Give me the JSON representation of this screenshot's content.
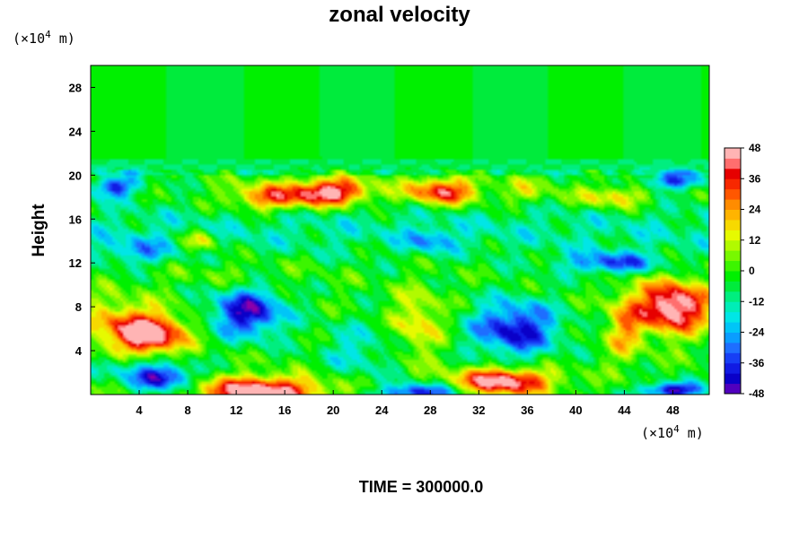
{
  "chart_data": {
    "type": "heatmap",
    "title": "zonal velocity",
    "ylabel": "Height",
    "y_unit_label": "(×10",
    "y_unit_exp": "4",
    "y_unit_tail": " m)",
    "x_unit_label": "(×10",
    "x_unit_exp": "4",
    "x_unit_tail": " m)",
    "time_label": "TIME = 300000.0",
    "xlim": [
      0,
      51
    ],
    "ylim": [
      0,
      30
    ],
    "x_ticks": [
      4,
      8,
      12,
      16,
      20,
      24,
      28,
      32,
      36,
      40,
      44,
      48
    ],
    "y_ticks": [
      4,
      8,
      12,
      16,
      20,
      24,
      28
    ],
    "colorbar": {
      "min": -48,
      "max": 48,
      "step": 4,
      "ticks": [
        48,
        36,
        24,
        12,
        0,
        -12,
        -24,
        -36,
        -48
      ]
    },
    "anomalies": [
      {
        "x": 5,
        "y": 5.5,
        "sx": 2.8,
        "sy": 1.8,
        "v": 52
      },
      {
        "x": 2,
        "y": 6.5,
        "sx": 3,
        "sy": 2.5,
        "v": 20
      },
      {
        "x": 14,
        "y": 0.3,
        "sx": 5,
        "sy": 1.3,
        "v": 55
      },
      {
        "x": 6,
        "y": 1.5,
        "sx": 2.5,
        "sy": 1.2,
        "v": -40
      },
      {
        "x": 13,
        "y": 7.5,
        "sx": 3,
        "sy": 2.2,
        "v": -42
      },
      {
        "x": 22,
        "y": 4,
        "sx": 3,
        "sy": 2.5,
        "v": -14
      },
      {
        "x": 27,
        "y": 6.5,
        "sx": 2,
        "sy": 3,
        "v": 20
      },
      {
        "x": 35,
        "y": 6,
        "sx": 3.5,
        "sy": 2.5,
        "v": -40
      },
      {
        "x": 34,
        "y": 1.2,
        "sx": 4,
        "sy": 1.2,
        "v": 52
      },
      {
        "x": 27,
        "y": 0.2,
        "sx": 3,
        "sy": 0.8,
        "v": -40
      },
      {
        "x": 48,
        "y": 8,
        "sx": 3,
        "sy": 2.3,
        "v": 56
      },
      {
        "x": 44,
        "y": 6,
        "sx": 1.5,
        "sy": 3,
        "v": 22
      },
      {
        "x": 48,
        "y": 0.4,
        "sx": 2.5,
        "sy": 0.7,
        "v": -45
      },
      {
        "x": 3,
        "y": 2.5,
        "sx": 3,
        "sy": 1.2,
        "v": -14
      },
      {
        "x": 20,
        "y": 18.5,
        "sx": 3,
        "sy": 1.2,
        "v": 48
      },
      {
        "x": 15,
        "y": 18,
        "sx": 3.5,
        "sy": 1.2,
        "v": 35
      },
      {
        "x": 29,
        "y": 18.5,
        "sx": 3,
        "sy": 1.2,
        "v": 42
      },
      {
        "x": 36,
        "y": 18.5,
        "sx": 2,
        "sy": 1.2,
        "v": 14
      },
      {
        "x": 43,
        "y": 18,
        "sx": 3,
        "sy": 1,
        "v": 22
      },
      {
        "x": 2,
        "y": 19,
        "sx": 2,
        "sy": 1,
        "v": -34
      },
      {
        "x": 48,
        "y": 19.5,
        "sx": 2.5,
        "sy": 0.8,
        "v": -32
      },
      {
        "x": 9,
        "y": 14,
        "sx": 1.5,
        "sy": 1,
        "v": 22
      },
      {
        "x": 43,
        "y": 12,
        "sx": 4,
        "sy": 1,
        "v": -30
      },
      {
        "x": 28,
        "y": 14,
        "sx": 2,
        "sy": 1,
        "v": -18
      },
      {
        "x": 4,
        "y": 13,
        "sx": 3,
        "sy": 1.2,
        "v": -18
      },
      {
        "x": 12,
        "y": 11,
        "sx": 6,
        "sy": 1.3,
        "v": 6
      }
    ]
  }
}
